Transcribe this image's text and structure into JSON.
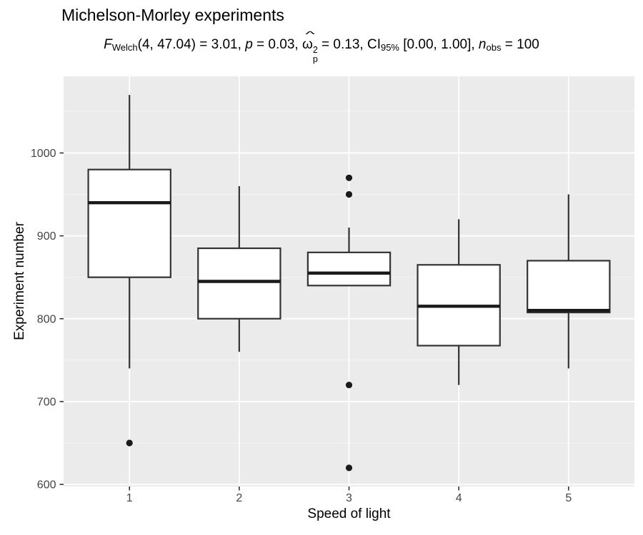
{
  "colors": {
    "panel_bg": "#EBEBEB",
    "grid_major": "#FFFFFF",
    "grid_minor": "#F5F5F5",
    "box_stroke": "#333333",
    "box_fill": "#FFFFFF",
    "median": "#1A1A1A",
    "outlier": "#1A1A1A",
    "tick_mark": "#333333",
    "axis_text": "#444444"
  },
  "chart_data": {
    "type": "boxplot",
    "title": "Michelson-Morley experiments",
    "subtitle_text": "F_Welch(4, 47.04) = 3.01, p = 0.03, ω̂²p = 0.13, CI_95% [0.00, 1.00], n_obs = 100",
    "subtitle_parts": {
      "f": "F",
      "f_sub": "Welch",
      "f_args": "(4, 47.04)",
      "f_val": " = 3.01, ",
      "p": "p",
      "p_val": " = 0.03, ",
      "omega": "ω",
      "hat": "^",
      "omega_sup": "2",
      "omega_sub": "p",
      "omega_val": " = 0.13, ",
      "ci": "CI",
      "ci_sub": "95%",
      "ci_val": " [0.00, 1.00], ",
      "n": "n",
      "n_sub": "obs",
      "n_val": " = 100"
    },
    "xlabel": "Speed of light",
    "ylabel": "Experiment number",
    "x_categories": [
      "1",
      "2",
      "3",
      "4",
      "5"
    ],
    "y_axis": {
      "ticks": [
        600,
        700,
        800,
        900,
        1000
      ],
      "minor_ticks": [
        650,
        750,
        850,
        950,
        1050
      ],
      "range": [
        597.5,
        1092.5
      ]
    },
    "grid": true,
    "legend": false,
    "groups": [
      {
        "label": "1",
        "whisker_low": 740,
        "q1": 850,
        "median": 940,
        "q3": 980,
        "whisker_high": 1070,
        "outliers": [
          650
        ]
      },
      {
        "label": "2",
        "whisker_low": 760,
        "q1": 800,
        "median": 845,
        "q3": 885,
        "whisker_high": 960,
        "outliers": []
      },
      {
        "label": "3",
        "whisker_low": 840,
        "q1": 840,
        "median": 855,
        "q3": 880,
        "whisker_high": 910,
        "outliers": [
          970,
          950,
          720,
          620
        ]
      },
      {
        "label": "4",
        "whisker_low": 720,
        "q1": 767.5,
        "median": 815,
        "q3": 865,
        "whisker_high": 920,
        "outliers": []
      },
      {
        "label": "5",
        "whisker_low": 740,
        "q1": 807.5,
        "median": 810,
        "q3": 870,
        "whisker_high": 950,
        "outliers": []
      }
    ]
  }
}
